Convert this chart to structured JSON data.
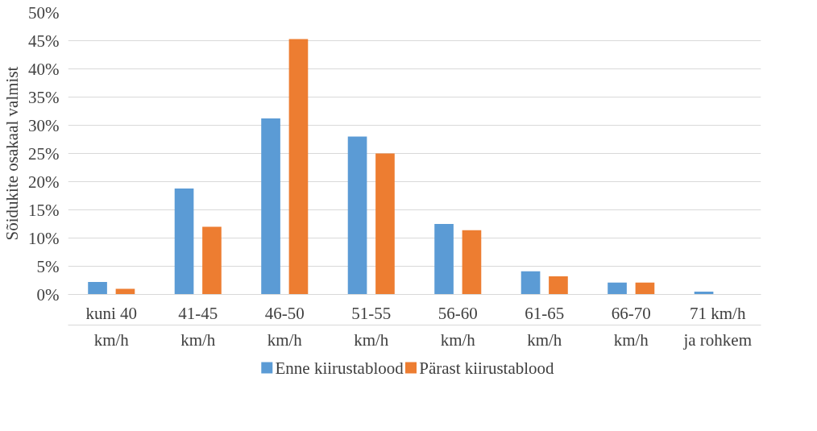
{
  "chart_data": {
    "type": "bar",
    "ylabel": "Sõidukite osakaal valmist",
    "categories": [
      "kuni 40\nkm/h",
      "41-45\nkm/h",
      "46-50\nkm/h",
      "51-55\nkm/h",
      "56-60\nkm/h",
      "61-65\nkm/h",
      "66-70\nkm/h",
      "71 km/h\nja rohkem"
    ],
    "series": [
      {
        "name": "Enne kiirustablood",
        "color": "#5b9bd5",
        "values": [
          2.2,
          18.8,
          31.2,
          28.0,
          12.5,
          4.1,
          2.1,
          0.5
        ]
      },
      {
        "name": "Pärast kiirustablood",
        "color": "#ed7d31",
        "values": [
          1.0,
          12.0,
          45.3,
          25.0,
          11.4,
          3.2,
          2.1,
          0
        ]
      }
    ],
    "ylim": [
      0,
      50
    ],
    "yticks": [
      {
        "value": 0,
        "label": "0%"
      },
      {
        "value": 5,
        "label": "5%"
      },
      {
        "value": 10,
        "label": "10%"
      },
      {
        "value": 15,
        "label": "15%"
      },
      {
        "value": 20,
        "label": "20%"
      },
      {
        "value": 25,
        "label": "25%"
      },
      {
        "value": 30,
        "label": "30%"
      },
      {
        "value": 35,
        "label": "35%"
      },
      {
        "value": 40,
        "label": "40%"
      },
      {
        "value": 45,
        "label": "45%"
      },
      {
        "value": 50,
        "label": "50%"
      }
    ],
    "grid": "y",
    "legend": "bottom"
  }
}
